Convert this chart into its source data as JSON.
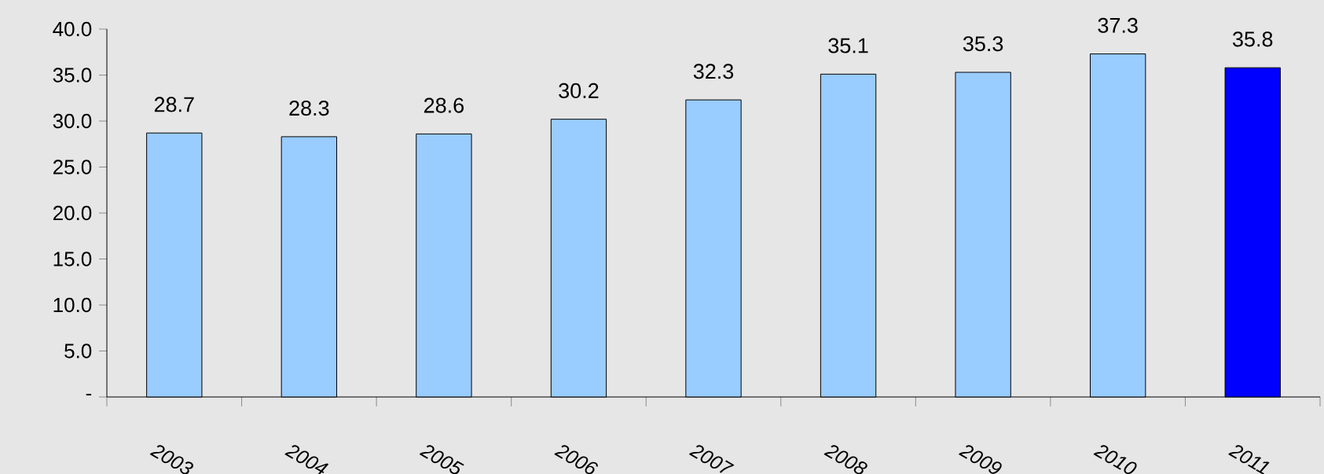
{
  "chart_data": {
    "type": "bar",
    "categories": [
      "2003",
      "2004",
      "2005",
      "2006",
      "2007",
      "2008",
      "2009",
      "2010",
      "2011"
    ],
    "values": [
      28.7,
      28.3,
      28.6,
      30.2,
      32.3,
      35.1,
      35.3,
      37.3,
      35.8
    ],
    "colors": [
      "#99ccff",
      "#99ccff",
      "#99ccff",
      "#99ccff",
      "#99ccff",
      "#99ccff",
      "#99ccff",
      "#99ccff",
      "#0000ff"
    ],
    "ylim": [
      0,
      40
    ],
    "yticks": [
      {
        "value": 0,
        "label": "-"
      },
      {
        "value": 5,
        "label": "5.0"
      },
      {
        "value": 10,
        "label": "10.0"
      },
      {
        "value": 15,
        "label": "15.0"
      },
      {
        "value": 20,
        "label": "20.0"
      },
      {
        "value": 25,
        "label": "25.0"
      },
      {
        "value": 30,
        "label": "30.0"
      },
      {
        "value": 35,
        "label": "35.0"
      },
      {
        "value": 40,
        "label": "40.0"
      }
    ],
    "data_labels": true,
    "grid": false
  }
}
